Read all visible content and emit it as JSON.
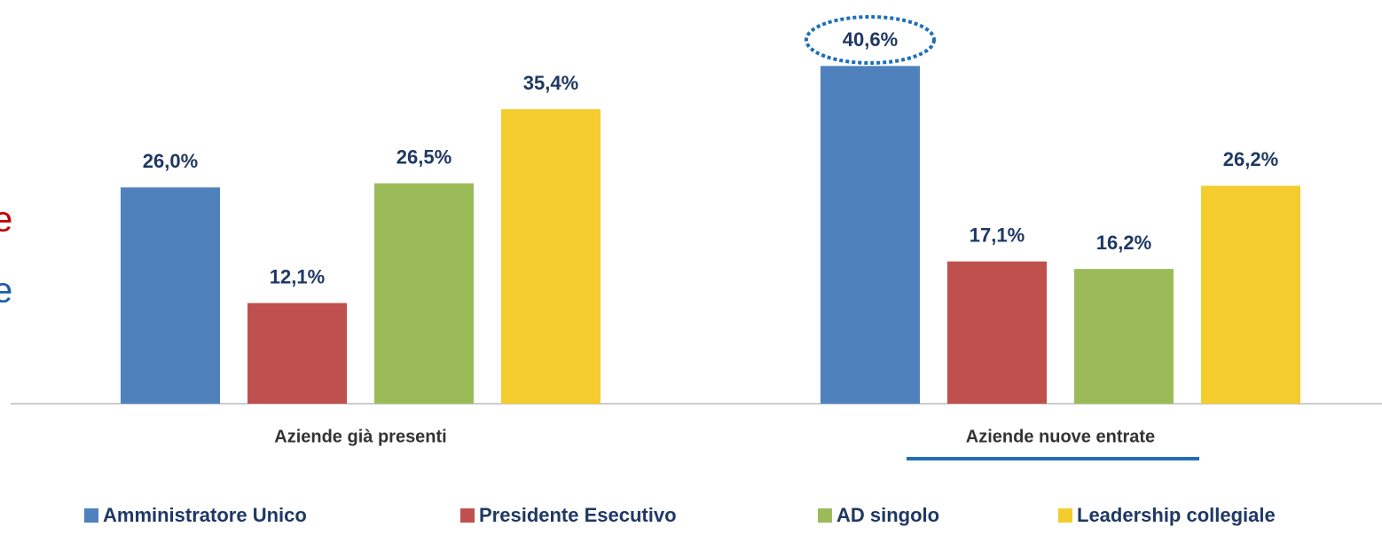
{
  "chart_data": {
    "type": "bar",
    "categories": [
      "Aziende già presenti",
      "Aziende nuove entrate"
    ],
    "series": [
      {
        "name": "Amministratore Unico",
        "color": "#4f81bd",
        "values": [
          26.0,
          40.6
        ],
        "value_labels": [
          "26,0%",
          "40,6%"
        ]
      },
      {
        "name": "Presidente Esecutivo",
        "color": "#c0504d",
        "values": [
          12.1,
          17.1
        ],
        "value_labels": [
          "12,1%",
          "17,1%"
        ]
      },
      {
        "name": "AD singolo",
        "color": "#9bbb59",
        "values": [
          26.5,
          16.2
        ],
        "value_labels": [
          "26,5%",
          "16,2%"
        ]
      },
      {
        "name": "Leadership collegiale",
        "color": "#f4cc2e",
        "values": [
          35.4,
          26.2
        ],
        "value_labels": [
          "35,4%",
          "26,2%"
        ]
      }
    ],
    "ylim": [
      0,
      48
    ],
    "legend": "bottom"
  },
  "fragments": [
    "e",
    "e"
  ]
}
